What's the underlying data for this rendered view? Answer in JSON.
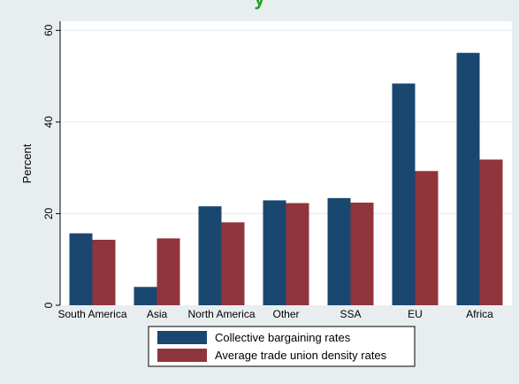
{
  "chart_data": {
    "type": "bar",
    "title": "y",
    "xlabel": "",
    "ylabel": "Percent",
    "ylim": [
      0,
      62
    ],
    "yticks": [
      0,
      20,
      40,
      60
    ],
    "grid": true,
    "legend_position": "bottom",
    "categories": [
      "South America",
      "Asia",
      "North America",
      "Other",
      "SSA",
      "EU",
      "Africa"
    ],
    "series": [
      {
        "name": "Collective bargaining rates",
        "color": "#1a476f",
        "values": [
          15.7,
          4.0,
          21.6,
          22.9,
          23.4,
          48.4,
          55.1
        ]
      },
      {
        "name": "Average trade union density rates",
        "color": "#90353b",
        "values": [
          14.3,
          14.6,
          18.1,
          22.3,
          22.4,
          29.3,
          31.8
        ]
      }
    ]
  }
}
